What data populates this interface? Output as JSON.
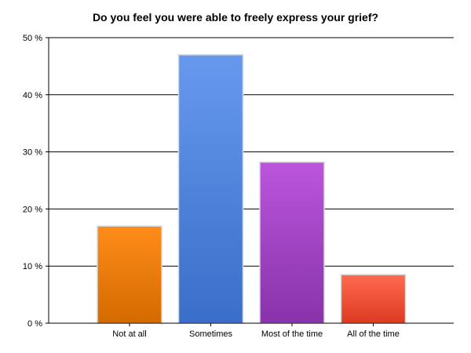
{
  "chart_data": {
    "type": "bar",
    "title": "Do you feel you were able to freely express your grief?",
    "categories": [
      "Not at all",
      "Sometimes",
      "Most of the time",
      "All of the time"
    ],
    "values": [
      17,
      47,
      28.2,
      8.5
    ],
    "unit": "%",
    "ylim": [
      0,
      50
    ],
    "yticks": [
      0,
      10,
      20,
      30,
      40,
      50
    ],
    "ytick_labels": [
      "0 %",
      "10 %",
      "20 %",
      "30 %",
      "40 %",
      "50 %"
    ],
    "grid": true,
    "legend": "none",
    "bar_colors": [
      {
        "top": "#ff8c1a",
        "bottom": "#d46a00"
      },
      {
        "top": "#6699ee",
        "bottom": "#3a6ec8"
      },
      {
        "top": "#bb55dd",
        "bottom": "#8833aa"
      },
      {
        "top": "#ff6a50",
        "bottom": "#dd3a22"
      }
    ]
  }
}
